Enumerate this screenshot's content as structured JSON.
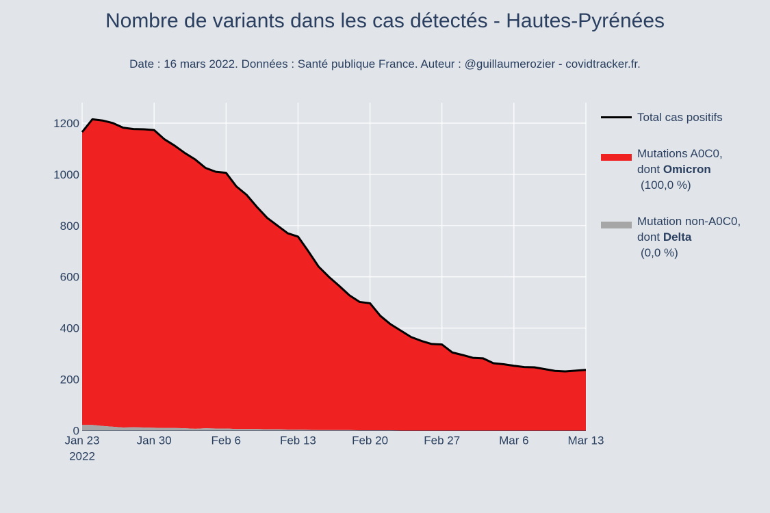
{
  "title": "Nombre de variants dans les cas détectés - Hautes-Pyrénées",
  "subtitle": "Date : 16 mars 2022. Données : Santé publique France. Auteur : @guillaumerozier - covidtracker.fr.",
  "legend": {
    "total": "Total cas positifs",
    "omicron_line1": "Mutations A0C0,",
    "omicron_line2_prefix": "dont ",
    "omicron_line2_bold": "Omicron",
    "omicron_line3": " (100,0 %)",
    "delta_line1": "Mutation non-A0C0,",
    "delta_line2_prefix": "dont ",
    "delta_line2_bold": "Delta",
    "delta_line3": " (0,0 %)"
  },
  "colors": {
    "background": "#e1e5ea",
    "omicron": "#ef2121",
    "delta": "#a6a6a6",
    "total": "#000000",
    "grid": "#ffffff",
    "text": "#2a3f5f"
  },
  "chart_data": {
    "type": "area",
    "x_start": "2022-01-23",
    "x_end": "2022-03-13",
    "x_ticks": [
      {
        "label": "Jan 23",
        "sublabel": "2022",
        "date": "2022-01-23"
      },
      {
        "label": "Jan 30",
        "date": "2022-01-30"
      },
      {
        "label": "Feb 6",
        "date": "2022-02-06"
      },
      {
        "label": "Feb 13",
        "date": "2022-02-13"
      },
      {
        "label": "Feb 20",
        "date": "2022-02-20"
      },
      {
        "label": "Feb 27",
        "date": "2022-02-27"
      },
      {
        "label": "Mar 6",
        "date": "2022-03-06"
      },
      {
        "label": "Mar 13",
        "date": "2022-03-13"
      }
    ],
    "y_ticks": [
      0,
      200,
      400,
      600,
      800,
      1000,
      1200
    ],
    "ylim": [
      0,
      1280
    ],
    "grid": true,
    "legend_position": "right",
    "series": [
      {
        "name": "Total cas positifs",
        "style": "line",
        "values": [
          1165,
          1215,
          1210,
          1200,
          1182,
          1177,
          1176,
          1173,
          1137,
          1112,
          1083,
          1058,
          1025,
          1010,
          1006,
          953,
          920,
          873,
          830,
          800,
          770,
          757,
          700,
          640,
          600,
          565,
          528,
          502,
          497,
          448,
          415,
          390,
          365,
          350,
          338,
          336,
          305,
          295,
          284,
          282,
          263,
          259,
          253,
          248,
          247,
          240,
          233,
          231,
          234,
          237
        ]
      },
      {
        "name": "Mutations A0C0, dont Omicron",
        "style": "area",
        "values": [
          1143,
          1193,
          1192,
          1185,
          1170,
          1164,
          1164,
          1162,
          1127,
          1102,
          1074,
          1051,
          1016,
          1002,
          998,
          947,
          914,
          867,
          825,
          795,
          766,
          753,
          697,
          638,
          598,
          563,
          526,
          501,
          496,
          447,
          414,
          390,
          365,
          350,
          338,
          336,
          305,
          295,
          284,
          282,
          263,
          259,
          253,
          248,
          247,
          240,
          233,
          231,
          234,
          237
        ]
      },
      {
        "name": "Mutation non-A0C0, dont Delta",
        "style": "area",
        "values": [
          22,
          22,
          18,
          15,
          12,
          13,
          12,
          11,
          10,
          10,
          9,
          7,
          9,
          8,
          8,
          6,
          6,
          6,
          5,
          5,
          4,
          4,
          3,
          2,
          2,
          2,
          2,
          1,
          1,
          1,
          1,
          0,
          0,
          0,
          0,
          0,
          0,
          0,
          0,
          0,
          0,
          0,
          0,
          0,
          0,
          0,
          0,
          0,
          0,
          0
        ]
      }
    ]
  }
}
